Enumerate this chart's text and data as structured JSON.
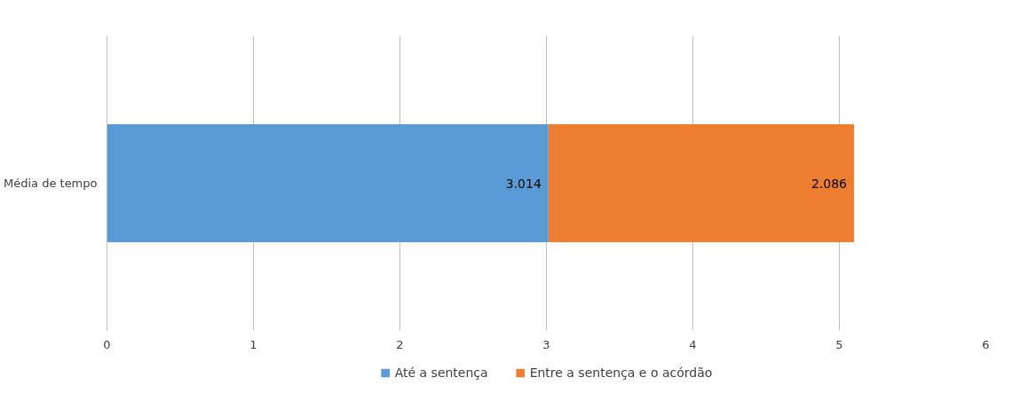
{
  "chart_data": {
    "type": "bar",
    "orientation": "horizontal",
    "stacked": true,
    "categories": [
      "Média de tempo"
    ],
    "series": [
      {
        "name": "Até a sentença",
        "color": "#5b9bd5",
        "values": [
          3.014
        ]
      },
      {
        "name": "Entre a sentença e o acórdão",
        "color": "#ed7d31",
        "values": [
          2.086
        ]
      }
    ],
    "xlim": [
      0,
      6
    ],
    "xticks": [
      0,
      1,
      2,
      3,
      4,
      5,
      6
    ],
    "grid": "x",
    "legend": "bottom",
    "data_labels": true
  }
}
